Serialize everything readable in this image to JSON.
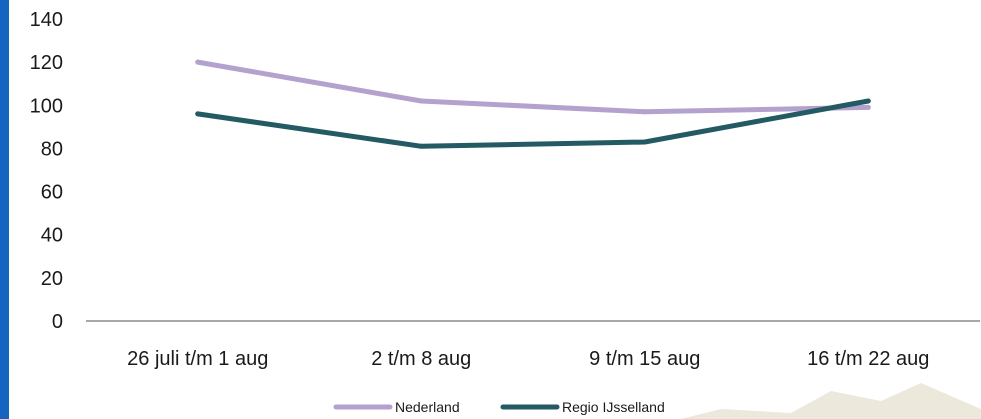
{
  "chart_data": {
    "type": "line",
    "categories": [
      "26 juli t/m 1 aug",
      "2 t/m 8 aug",
      "9 t/m 15 aug",
      "16 t/m 22 aug"
    ],
    "series": [
      {
        "name": "Nederland",
        "values": [
          120,
          102,
          97,
          99
        ],
        "color": "#b3a2cd"
      },
      {
        "name": "Regio IJsselland",
        "values": [
          96,
          81,
          83,
          102
        ],
        "color": "#235a63"
      }
    ],
    "yticks": [
      0,
      20,
      40,
      60,
      80,
      100,
      120,
      140
    ],
    "ylim": [
      0,
      140
    ],
    "grid": false,
    "legend_position": "bottom",
    "axis_color": "#8c8c8c"
  }
}
